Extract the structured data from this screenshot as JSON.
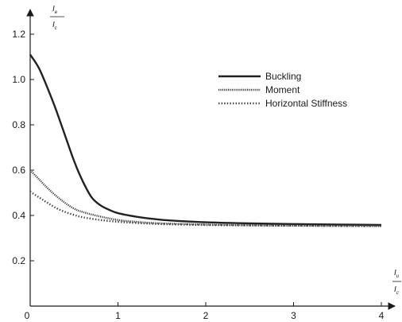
{
  "chart_data": {
    "type": "line",
    "y_axis": {
      "label_num_main": "I",
      "label_num_sub": "e",
      "label_den_main": "I",
      "label_den_sub": "c",
      "range": [
        0,
        1.25
      ],
      "ticks": [
        "0.2",
        "0.4",
        "0.6",
        "0.8",
        "1.0",
        "1.2"
      ],
      "tick_values": [
        0.2,
        0.4,
        0.6,
        0.8,
        1.0,
        1.2
      ]
    },
    "x_axis": {
      "label_num_main": "I",
      "label_num_sub": "u",
      "label_den_main": "I",
      "label_den_sub": "c",
      "range": [
        0,
        4.25
      ],
      "ticks": [
        "0",
        "1",
        "2",
        "3",
        "4"
      ],
      "tick_values": [
        0,
        1,
        2,
        3,
        4
      ]
    },
    "legend_placement": "top-right",
    "grid": false,
    "series": [
      {
        "name": "Buckling",
        "style": "solid",
        "color": "#222222",
        "x": [
          0,
          0.1,
          0.2,
          0.3,
          0.4,
          0.5,
          0.6,
          0.7,
          0.8,
          0.9,
          1.0,
          1.2,
          1.4,
          1.6,
          2.0,
          2.5,
          3.0,
          3.5,
          4.0
        ],
        "y": [
          1.11,
          1.05,
          0.96,
          0.86,
          0.75,
          0.64,
          0.55,
          0.48,
          0.445,
          0.425,
          0.41,
          0.395,
          0.385,
          0.378,
          0.37,
          0.365,
          0.362,
          0.36,
          0.358
        ]
      },
      {
        "name": "Moment",
        "style": "dense-dot",
        "color": "#444444",
        "x": [
          0,
          0.1,
          0.2,
          0.3,
          0.4,
          0.5,
          0.6,
          0.8,
          1.0,
          1.2,
          1.5,
          2.0,
          2.5,
          3.0,
          3.5,
          4.0
        ],
        "y": [
          0.6,
          0.56,
          0.52,
          0.485,
          0.455,
          0.43,
          0.415,
          0.395,
          0.38,
          0.372,
          0.365,
          0.36,
          0.357,
          0.355,
          0.354,
          0.353
        ]
      },
      {
        "name": "Horizontal Stiffness",
        "style": "dot",
        "color": "#444444",
        "x": [
          0,
          0.1,
          0.2,
          0.3,
          0.4,
          0.5,
          0.6,
          0.8,
          1.0,
          1.2,
          1.5,
          2.0,
          2.5,
          3.0,
          3.5,
          4.0
        ],
        "y": [
          0.505,
          0.48,
          0.455,
          0.432,
          0.415,
          0.402,
          0.392,
          0.38,
          0.372,
          0.367,
          0.362,
          0.358,
          0.356,
          0.355,
          0.354,
          0.354
        ]
      }
    ]
  }
}
